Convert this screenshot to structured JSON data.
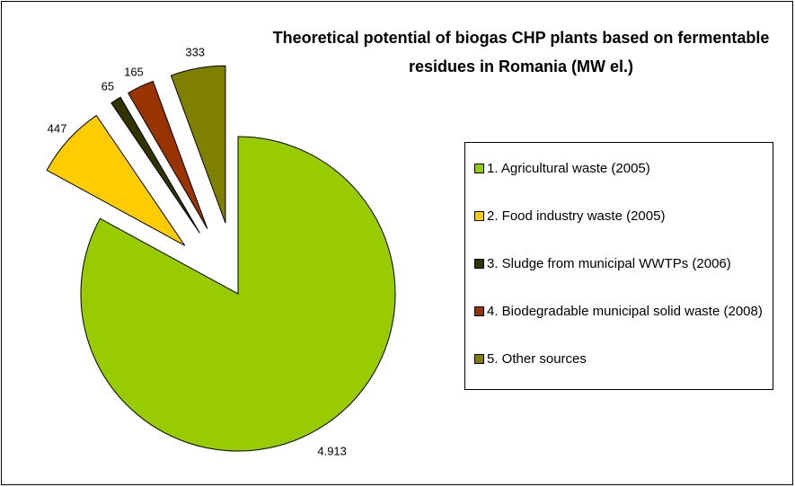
{
  "chart_data": {
    "type": "pie",
    "title": "Theoretical potential of biogas CHP plants based on fermentable residues in Romania (MW el.)",
    "categories": [
      "1. Agricultural waste (2005)",
      "2. Food industry waste (2005)",
      "3. Sludge from municipal WWTPs (2006)",
      "4. Biodegradable municipal solid waste (2008)",
      "5. Other sources"
    ],
    "values": [
      4913,
      447,
      65,
      165,
      333
    ],
    "value_labels": [
      "4.913",
      "447",
      "65",
      "165",
      "333"
    ],
    "colors": [
      "#99cc00",
      "#ffcc00",
      "#333300",
      "#993300",
      "#808000"
    ],
    "legend": "right"
  }
}
